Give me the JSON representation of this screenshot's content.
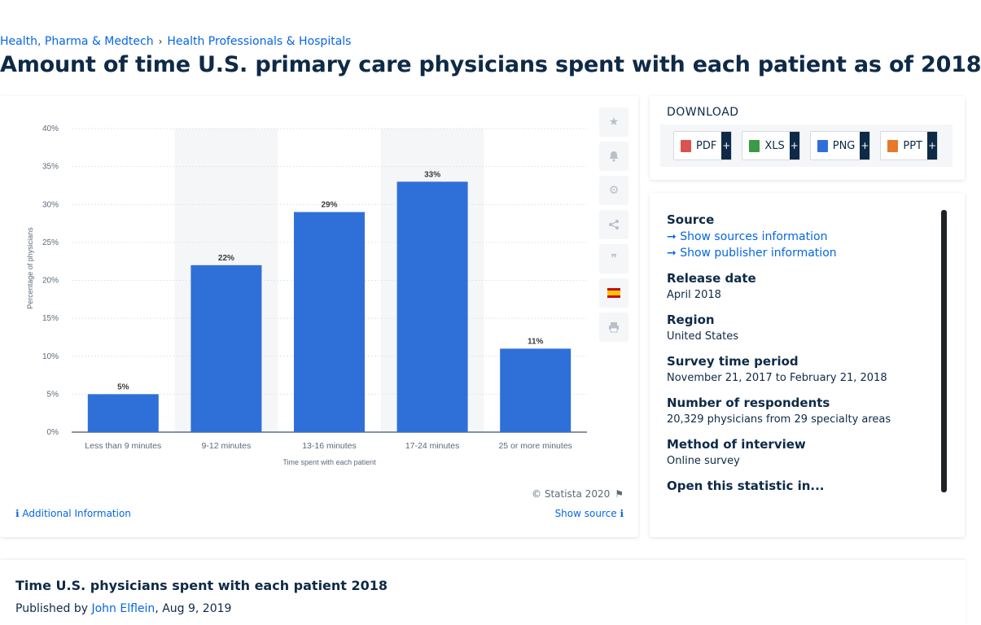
{
  "breadcrumb": {
    "items": [
      "Health, Pharma & Medtech",
      "Health Professionals & Hospitals"
    ],
    "separator": "›"
  },
  "page_title": "Amount of time U.S. primary care physicians spent with each patient as of 2018",
  "chart_data": {
    "type": "bar",
    "categories": [
      "Less than 9 minutes",
      "9-12 minutes",
      "13-16 minutes",
      "17-24 minutes",
      "25 or more minutes"
    ],
    "values": [
      5,
      22,
      29,
      33,
      11
    ],
    "data_labels": [
      "5%",
      "22%",
      "29%",
      "33%",
      "11%"
    ],
    "xlabel": "Time spent with each patient",
    "ylabel": "Percentage of physicians",
    "ylim": [
      0,
      40
    ],
    "yticks": [
      "0%",
      "5%",
      "10%",
      "15%",
      "20%",
      "25%",
      "30%",
      "35%",
      "40%"
    ],
    "grid": true,
    "colors": {
      "bar": "#2f6fd8",
      "band": "#f5f6f8",
      "grid": "#e2e5ea",
      "text": "#5b6a7a"
    }
  },
  "chart_card": {
    "copyright": "© Statista 2020",
    "additional_info": "Additional Information",
    "show_source": "Show source",
    "tools": [
      "star-icon",
      "bell-icon",
      "gear-icon",
      "share-icon",
      "quote-icon",
      "flag-spain-icon",
      "print-icon"
    ]
  },
  "download": {
    "title": "DOWNLOAD",
    "buttons": [
      {
        "label": "PDF",
        "color": "#d9534f"
      },
      {
        "label": "XLS",
        "color": "#3a9a46"
      },
      {
        "label": "PNG",
        "color": "#2f6fd8"
      },
      {
        "label": "PPT",
        "color": "#e8792a"
      }
    ]
  },
  "info": {
    "source_heading": "Source",
    "show_sources": "Show sources information",
    "show_publisher": "Show publisher information",
    "release_heading": "Release date",
    "release_value": "April 2018",
    "region_heading": "Region",
    "region_value": "United States",
    "period_heading": "Survey time period",
    "period_value": "November 21, 2017 to February 21, 2018",
    "respondents_heading": "Number of respondents",
    "respondents_value": "20,329 physicians from 29 specialty areas",
    "method_heading": "Method of interview",
    "method_value": "Online survey",
    "open_heading": "Open this statistic in..."
  },
  "publication": {
    "title": "Time U.S. physicians spent with each patient 2018",
    "published_by": "Published by",
    "author": "John Elflein",
    "date": ", Aug 9, 2019"
  }
}
